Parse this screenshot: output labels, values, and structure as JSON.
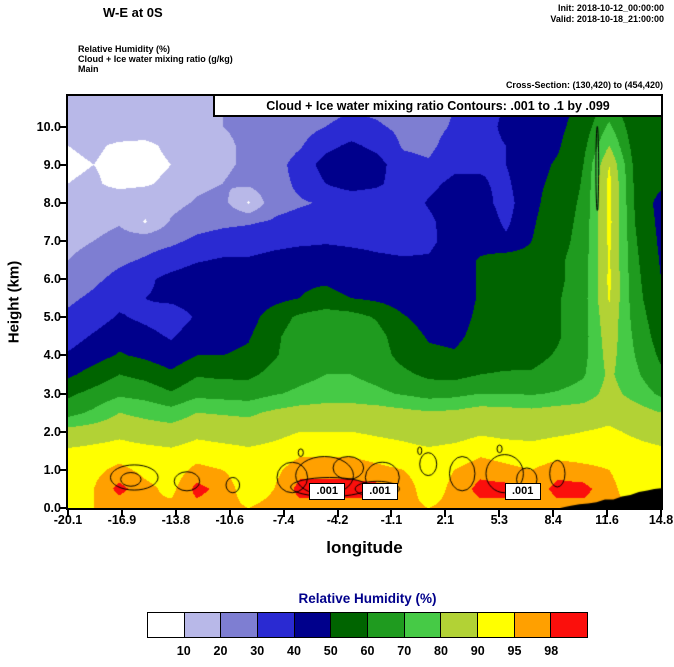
{
  "header": {
    "title": "W-E at 0S",
    "init": "Init: 2018-10-12_00:00:00",
    "valid": "Valid: 2018-10-18_21:00:00"
  },
  "info": {
    "field": "Relative Humidity  (%)",
    "cloud": "Cloud + Ice water mixing ratio  (g/kg)",
    "model": "Main",
    "cross_section": "Cross-Section: (130,420) to (454,420)"
  },
  "plot": {
    "contour_note": "Cloud + Ice water mixing ratio Contours: .001 to .1 by .099",
    "ylabel": "Height (km)",
    "xlabel": "longitude"
  },
  "colorbar": {
    "title": "Relative Humidity  (%)",
    "title_color": "#00008b",
    "labels": [
      "10",
      "20",
      "30",
      "40",
      "50",
      "60",
      "70",
      "80",
      "90",
      "95",
      "98"
    ]
  },
  "chart_data": {
    "type": "heatmap",
    "title": "W-E at 0S — Relative Humidity (%) cross-section with Cloud + Ice water mixing ratio contours",
    "xlabel": "longitude",
    "ylabel": "Height (km)",
    "xlim": [
      -20.1,
      14.8
    ],
    "ylim": [
      0,
      10.8
    ],
    "xticks": [
      "-20.1",
      "-16.9",
      "-13.8",
      "-10.6",
      "-7.4",
      "-4.2",
      "-1.1",
      "2.1",
      "5.3",
      "8.4",
      "11.6",
      "14.8"
    ],
    "yticks": [
      "0.0",
      "1.0",
      "2.0",
      "3.0",
      "4.0",
      "5.0",
      "6.0",
      "7.0",
      "8.0",
      "9.0",
      "10.0"
    ],
    "levels": [
      10,
      20,
      30,
      40,
      50,
      60,
      70,
      80,
      90,
      95,
      98
    ],
    "colors": [
      "#ffffff",
      "#b8b8e8",
      "#7e7ed2",
      "#2a2ad2",
      "#00008c",
      "#006400",
      "#1f9b1f",
      "#46ca46",
      "#b2d235",
      "#ffff00",
      "#ffa000",
      "#fb0f0c"
    ],
    "x": [
      -20.1,
      -18.58,
      -17.07,
      -15.55,
      -14.03,
      -12.52,
      -11.0,
      -9.48,
      -7.97,
      -6.45,
      -4.93,
      -3.42,
      -1.9,
      -0.38,
      1.13,
      2.65,
      4.17,
      5.68,
      7.2,
      8.72,
      10.23,
      11.75,
      13.27,
      14.8
    ],
    "y": [
      0,
      0.5,
      1,
      1.5,
      2,
      2.5,
      3,
      3.5,
      4,
      4.5,
      5,
      5.5,
      6,
      6.5,
      7,
      7.5,
      8,
      8.5,
      9,
      9.5,
      10,
      10.5,
      11
    ],
    "values": [
      [
        94,
        95,
        96,
        95,
        96,
        97,
        96,
        95,
        96,
        97,
        97,
        97,
        97,
        96,
        95,
        96,
        97,
        97,
        96,
        97,
        97,
        96,
        95,
        95
      ],
      [
        91,
        95,
        99,
        96,
        94,
        99,
        97,
        93,
        95,
        99,
        99,
        99,
        99,
        97,
        93,
        96,
        99,
        99,
        96,
        99,
        99,
        96,
        93,
        92
      ],
      [
        93,
        94,
        96,
        94,
        93,
        96,
        95,
        93,
        94,
        97,
        97,
        97,
        96,
        95,
        93,
        95,
        97,
        96,
        95,
        97,
        96,
        95,
        93,
        92
      ],
      [
        91,
        92,
        93,
        92,
        91,
        93,
        92,
        91,
        92,
        94,
        94,
        94,
        93,
        92,
        91,
        92,
        94,
        93,
        92,
        93,
        93,
        93,
        92,
        91
      ],
      [
        84,
        86,
        88,
        86,
        85,
        88,
        87,
        86,
        88,
        90,
        90,
        90,
        89,
        88,
        86,
        87,
        89,
        88,
        88,
        89,
        90,
        91,
        89,
        87
      ],
      [
        66,
        72,
        80,
        77,
        74,
        80,
        79,
        78,
        82,
        85,
        86,
        86,
        85,
        83,
        81,
        82,
        85,
        84,
        83,
        85,
        86,
        88,
        85,
        80
      ],
      [
        58,
        63,
        68,
        66,
        61,
        67,
        66,
        65,
        69,
        72,
        74,
        74,
        72,
        69,
        66,
        67,
        70,
        70,
        69,
        71,
        74,
        84,
        76,
        68
      ],
      [
        48,
        54,
        60,
        57,
        52,
        59,
        58,
        58,
        63,
        67,
        70,
        70,
        67,
        62,
        58,
        57,
        60,
        61,
        61,
        64,
        69,
        82,
        72,
        62
      ],
      [
        41,
        46,
        51,
        48,
        44,
        50,
        50,
        52,
        59,
        65,
        68,
        68,
        64,
        57,
        52,
        51,
        55,
        56,
        57,
        61,
        67,
        84,
        70,
        58
      ],
      [
        36,
        41,
        46,
        43,
        39,
        45,
        46,
        49,
        58,
        65,
        69,
        68,
        63,
        55,
        49,
        48,
        53,
        55,
        55,
        59,
        66,
        86,
        68,
        55
      ],
      [
        32,
        36,
        41,
        38,
        35,
        41,
        42,
        46,
        55,
        62,
        66,
        64,
        59,
        51,
        46,
        46,
        52,
        55,
        55,
        59,
        66,
        88,
        66,
        53
      ],
      [
        28,
        32,
        37,
        40,
        42,
        44,
        45,
        44,
        47,
        50,
        52,
        50,
        48,
        45,
        43,
        45,
        51,
        55,
        55,
        59,
        66,
        91,
        64,
        51
      ],
      [
        24,
        28,
        33,
        38,
        43,
        46,
        46,
        45,
        47,
        49,
        49,
        47,
        45,
        43,
        42,
        45,
        51,
        55,
        54,
        58,
        65,
        92,
        63,
        50
      ],
      [
        20,
        24,
        28,
        31,
        35,
        39,
        41,
        41,
        43,
        45,
        45,
        44,
        42,
        41,
        41,
        45,
        51,
        55,
        54,
        58,
        65,
        91,
        62,
        49
      ],
      [
        17,
        20,
        24,
        26,
        28,
        32,
        34,
        35,
        37,
        38,
        39,
        38,
        37,
        36,
        38,
        44,
        46,
        42,
        50,
        56,
        64,
        92,
        61,
        48
      ],
      [
        14,
        16,
        19,
        9,
        21,
        26,
        28,
        29,
        31,
        33,
        34,
        34,
        33,
        34,
        38,
        45,
        47,
        38,
        49,
        55,
        63,
        93,
        60,
        47
      ],
      [
        12,
        13,
        15,
        16,
        17,
        21,
        23,
        9,
        27,
        29,
        31,
        32,
        32,
        34,
        41,
        46,
        44,
        36,
        48,
        54,
        62,
        92,
        59,
        46
      ],
      [
        10,
        11,
        8,
        9,
        12,
        18,
        20,
        22,
        26,
        32,
        40,
        45,
        42,
        34,
        37,
        43,
        41,
        38,
        48,
        52,
        61,
        93,
        58,
        52
      ],
      [
        9,
        10,
        8,
        7,
        10,
        17,
        19,
        21,
        26,
        34,
        44,
        48,
        44,
        33,
        31,
        37,
        39,
        40,
        47,
        51,
        60,
        90,
        57,
        52
      ],
      [
        10,
        11,
        9,
        8,
        12,
        17,
        19,
        21,
        24,
        29,
        37,
        42,
        37,
        29,
        28,
        34,
        37,
        40,
        45,
        49,
        57,
        80,
        55,
        51
      ],
      [
        12,
        13,
        14,
        15,
        16,
        18,
        20,
        21,
        23,
        26,
        30,
        33,
        31,
        28,
        27,
        31,
        36,
        42,
        44,
        48,
        54,
        72,
        53,
        50
      ],
      [
        14,
        15,
        15,
        16,
        17,
        19,
        20,
        21,
        22,
        24,
        27,
        29,
        28,
        26,
        26,
        30,
        35,
        41,
        43,
        47,
        52,
        64,
        51,
        50
      ],
      [
        15,
        16,
        16,
        17,
        18,
        19,
        20,
        21,
        22,
        24,
        26,
        28,
        27,
        26,
        26,
        29,
        34,
        40,
        42,
        46,
        50,
        60,
        50,
        50
      ]
    ],
    "cloud_contour_range": {
      "from": 0.001,
      "to": 0.1,
      "by": 0.099
    },
    "cloud_contour_label": ".001",
    "cloud_contours": [
      [
        -16.2,
        0.8,
        1.4,
        0.33
      ],
      [
        -16.4,
        0.75,
        0.6,
        0.18
      ],
      [
        -13.1,
        0.7,
        0.75,
        0.25
      ],
      [
        -10.4,
        0.6,
        0.4,
        0.2
      ],
      [
        -6.9,
        0.8,
        0.9,
        0.4
      ],
      [
        -5.0,
        0.85,
        1.7,
        0.5
      ],
      [
        -4.7,
        0.55,
        2.3,
        0.25
      ],
      [
        -3.6,
        1.05,
        0.9,
        0.3
      ],
      [
        -1.6,
        0.8,
        1.0,
        0.4
      ],
      [
        -1.9,
        0.5,
        1.3,
        0.2
      ],
      [
        1.1,
        1.15,
        0.5,
        0.3
      ],
      [
        3.1,
        0.9,
        0.75,
        0.45
      ],
      [
        5.6,
        0.9,
        1.1,
        0.5
      ],
      [
        6.9,
        0.75,
        0.6,
        0.3
      ],
      [
        8.7,
        0.9,
        0.45,
        0.35
      ],
      [
        -6.4,
        1.45,
        0.15,
        0.1
      ],
      [
        0.6,
        1.5,
        0.12,
        0.1
      ],
      [
        5.3,
        1.55,
        0.15,
        0.1
      ],
      [
        11.05,
        8.9,
        0.08,
        1.1
      ]
    ],
    "cloud_label_positions": [
      [
        -4.9,
        0.45
      ],
      [
        -1.8,
        0.45
      ],
      [
        6.6,
        0.45
      ]
    ],
    "terrain": [
      [
        8.85,
        0
      ],
      [
        9.5,
        0.06
      ],
      [
        10.0,
        0.1
      ],
      [
        10.5,
        0.12
      ],
      [
        11.0,
        0.15
      ],
      [
        11.5,
        0.22
      ],
      [
        12.0,
        0.22
      ],
      [
        12.5,
        0.3
      ],
      [
        13.0,
        0.34
      ],
      [
        13.5,
        0.42
      ],
      [
        14.0,
        0.46
      ],
      [
        14.4,
        0.5
      ],
      [
        14.8,
        0.52
      ]
    ],
    "grid": false,
    "legend_position": "bottom"
  }
}
